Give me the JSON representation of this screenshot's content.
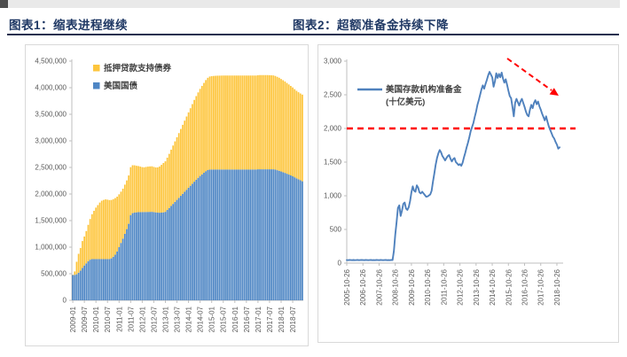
{
  "header": {
    "chart1_title": "图表1：缩表进程继续",
    "chart2_title": "图表2：超额准备金持续下降",
    "title_color": "#1F3864"
  },
  "chart_data": [
    {
      "type": "bar",
      "subtype": "stacked-monthly-columns",
      "title": "图表1：缩表进程继续",
      "x_range": [
        "2009-01",
        "2018-12"
      ],
      "x_tick_labels": [
        "2009-01",
        "2009-07",
        "2010-01",
        "2010-07",
        "2011-01",
        "2011-07",
        "2012-01",
        "2012-07",
        "2013-01",
        "2013-07",
        "2014-01",
        "2014-07",
        "2015-01",
        "2015-07",
        "2016-01",
        "2016-07",
        "2017-01",
        "2017-07",
        "2018-01",
        "2018-07"
      ],
      "ylim": [
        0,
        4500000
      ],
      "y_tick_step": 500000,
      "y_tick_labels": [
        "0",
        "500,000",
        "1,000,000",
        "1,500,000",
        "2,000,000",
        "2,500,000",
        "3,000,000",
        "3,500,000",
        "4,000,000",
        "4,500,000"
      ],
      "legend": [
        {
          "label": "抵押贷款支持债券",
          "color": "#FDC53C"
        },
        {
          "label": "美国国债",
          "color": "#4E86C4"
        }
      ],
      "series": [
        {
          "name": "美国国债",
          "color": "#4E86C4",
          "values": [
            475000,
            478000,
            490000,
            520000,
            560000,
            610000,
            655000,
            695000,
            735000,
            765000,
            775000,
            776000,
            776000,
            776000,
            776000,
            776000,
            776000,
            776000,
            776000,
            777000,
            790000,
            820000,
            860000,
            920000,
            1000000,
            1080000,
            1160000,
            1250000,
            1340000,
            1440000,
            1600000,
            1640000,
            1650000,
            1655000,
            1660000,
            1660000,
            1660000,
            1661000,
            1662000,
            1663000,
            1664000,
            1665000,
            1660000,
            1655000,
            1650000,
            1648000,
            1650000,
            1655000,
            1665000,
            1700000,
            1738000,
            1776000,
            1814000,
            1852000,
            1890000,
            1928000,
            1966000,
            2004000,
            2042000,
            2080000,
            2118000,
            2156000,
            2194000,
            2232000,
            2270000,
            2305000,
            2340000,
            2370000,
            2400000,
            2430000,
            2450000,
            2460000,
            2461000,
            2461000,
            2461000,
            2461000,
            2461000,
            2461000,
            2461000,
            2461000,
            2461000,
            2461000,
            2461000,
            2461000,
            2461000,
            2461000,
            2461000,
            2461000,
            2461000,
            2461000,
            2461000,
            2461000,
            2461000,
            2461000,
            2461000,
            2461000,
            2465000,
            2465000,
            2465000,
            2465000,
            2465000,
            2465000,
            2465000,
            2465000,
            2465000,
            2459000,
            2448000,
            2437000,
            2424000,
            2411000,
            2398000,
            2382000,
            2366000,
            2350000,
            2334000,
            2315000,
            2296000,
            2277000,
            2258000,
            2240000
          ]
        },
        {
          "name": "抵押贷款支持债券",
          "color": "#FDC53C",
          "values": [
            6000,
            65000,
            235000,
            355000,
            425000,
            505000,
            545000,
            608000,
            685000,
            765000,
            845000,
            908000,
            968000,
            1015000,
            1063000,
            1098000,
            1113000,
            1123000,
            1118000,
            1109000,
            1098000,
            1083000,
            1063000,
            1030000,
            994000,
            964000,
            940000,
            926000,
            916000,
            909000,
            905000,
            901000,
            890000,
            876000,
            866000,
            856000,
            846000,
            841000,
            848000,
            852000,
            855000,
            856000,
            850000,
            845000,
            851000,
            870000,
            899000,
            928000,
            950000,
            984000,
            1018000,
            1058000,
            1098000,
            1138000,
            1178000,
            1218000,
            1258000,
            1298000,
            1338000,
            1378000,
            1418000,
            1458000,
            1498000,
            1538000,
            1572000,
            1606000,
            1638000,
            1664000,
            1690000,
            1714000,
            1736000,
            1750000,
            1756000,
            1760000,
            1763000,
            1765000,
            1766000,
            1767000,
            1768000,
            1768000,
            1768000,
            1768000,
            1768000,
            1768000,
            1768000,
            1768000,
            1768000,
            1768000,
            1768000,
            1768000,
            1768000,
            1768000,
            1768000,
            1768000,
            1768000,
            1768000,
            1770000,
            1772000,
            1772000,
            1772000,
            1772000,
            1772000,
            1770000,
            1768000,
            1766000,
            1762000,
            1756000,
            1750000,
            1740000,
            1730000,
            1719000,
            1707000,
            1695000,
            1683000,
            1671000,
            1658000,
            1646000,
            1638000,
            1633000,
            1630000
          ]
        }
      ]
    },
    {
      "type": "line",
      "title": "图表2：超额准备金持续下降",
      "legend_line1": "美国存款机构准备金",
      "legend_line2": "(十亿美元)",
      "x_range": [
        "2005-10-26",
        "2018-12-26"
      ],
      "x_tick_labels": [
        "2005-10-26",
        "2006-10-26",
        "2007-10-26",
        "2008-10-26",
        "2009-10-26",
        "2010-10-26",
        "2011-10-26",
        "2012-10-26",
        "2013-10-26",
        "2014-10-26",
        "2015-10-26",
        "2016-10-26",
        "2017-10-26",
        "2018-10-26"
      ],
      "ylim": [
        0,
        3000
      ],
      "y_tick_step": 500,
      "y_tick_labels": [
        "0",
        "500",
        "1,000",
        "1,500",
        "2,000",
        "2,500",
        "3,000"
      ],
      "series": [
        {
          "name": "美国存款机构准备金",
          "unit": "十亿美元",
          "color": "#4F81BD",
          "values": [
            45,
            44,
            46,
            45,
            43,
            46,
            44,
            45,
            47,
            44,
            45,
            46,
            45,
            44,
            46,
            45,
            44,
            45,
            46,
            44,
            45,
            43,
            46,
            45,
            44,
            46,
            45,
            44,
            45,
            46,
            44,
            45,
            44,
            46,
            45,
            180,
            420,
            610,
            820,
            858,
            700,
            780,
            880,
            900,
            810,
            790,
            830,
            920,
            1050,
            1140,
            1075,
            1060,
            1155,
            1120,
            1050,
            1035,
            1060,
            1035,
            1010,
            985,
            990,
            1005,
            1020,
            1075,
            1210,
            1330,
            1460,
            1560,
            1630,
            1680,
            1645,
            1590,
            1560,
            1525,
            1560,
            1590,
            1605,
            1550,
            1510,
            1545,
            1560,
            1500,
            1480,
            1455,
            1470,
            1445,
            1490,
            1570,
            1640,
            1720,
            1790,
            1870,
            1960,
            2020,
            2080,
            2170,
            2250,
            2350,
            2420,
            2500,
            2580,
            2640,
            2590,
            2660,
            2720,
            2790,
            2840,
            2800,
            2760,
            2620,
            2700,
            2820,
            2750,
            2810,
            2760,
            2830,
            2740,
            2680,
            2730,
            2650,
            2560,
            2480,
            2450,
            2320,
            2180,
            2380,
            2440,
            2390,
            2340,
            2400,
            2440,
            2380,
            2320,
            2250,
            2200,
            2180,
            2280,
            2350,
            2300,
            2380,
            2420,
            2360,
            2400,
            2330,
            2280,
            2220,
            2170,
            2120,
            2180,
            2100,
            2030,
            1980,
            1930,
            1880,
            1850,
            1800,
            1760,
            1700,
            1720
          ]
        }
      ],
      "annotations": {
        "reference_line": {
          "value": 2000,
          "color": "#FF0000",
          "style": "dashed"
        },
        "trend_arrow": {
          "direction": "down-right",
          "color": "#FF0000",
          "style": "dashed"
        }
      }
    }
  ],
  "style": {
    "axis_color": "#BFBFBF",
    "tick_label_color": "#595959",
    "legend_text_color": "#3f3f3f",
    "rule_color": "#21304f"
  }
}
